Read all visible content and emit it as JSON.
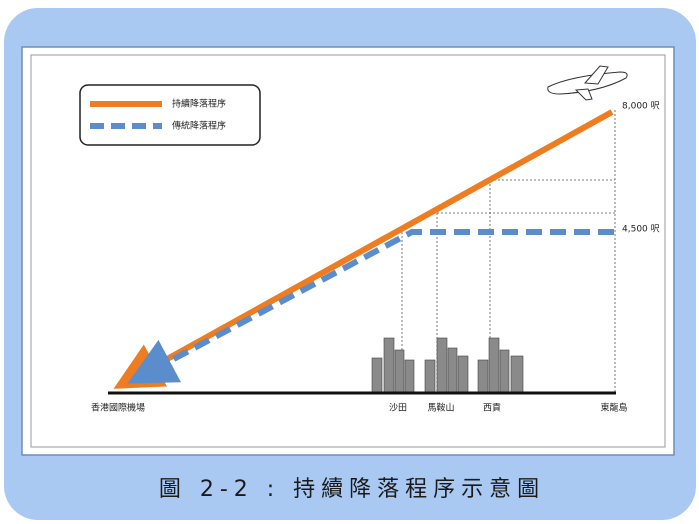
{
  "legend": [
    {
      "label": "持續降落程序"
    },
    {
      "label": "傳統降落程序"
    }
  ],
  "altitudes": [
    "8,000 呎",
    "4,500 呎"
  ],
  "places": [
    "香港國際機場",
    "沙田",
    "馬鞍山",
    "西貢",
    "東龍島"
  ],
  "caption": "圖 2-2 : 持續降落程序示意圖"
}
